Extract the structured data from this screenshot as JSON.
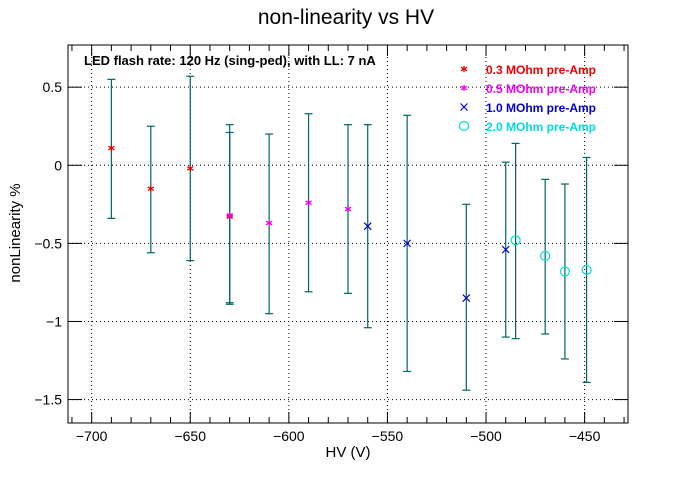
{
  "chart_data": {
    "type": "scatter",
    "title": "non-linearity vs HV",
    "xlabel": "HV (V)",
    "ylabel": "nonLinearity %",
    "annotation": "LED flash rate: 120 Hz  (sing-ped), with LL: 7 nA",
    "xlim": [
      -712,
      -428
    ],
    "ylim": [
      -1.65,
      0.77
    ],
    "x_ticks": [
      -700,
      -650,
      -600,
      -550,
      -500,
      -450
    ],
    "x_tick_labels": [
      "−700",
      "−650",
      "−600",
      "−550",
      "−500",
      "−450"
    ],
    "y_ticks": [
      0.5,
      0,
      -0.5,
      -1,
      -1.5
    ],
    "y_tick_labels": [
      "0.5",
      "0",
      "−0.5",
      "−1",
      "−1.5"
    ],
    "grid": true,
    "legend_position": "top-right",
    "error_bar_color": "#006666",
    "series": [
      {
        "name": "0.3 MOhm pre-Amp",
        "marker": "star",
        "marker_glyph": "*",
        "color": "#ee0000",
        "points": [
          {
            "x": -690,
            "y": 0.11,
            "ylow": -0.34,
            "yhigh": 0.55
          },
          {
            "x": -670,
            "y": -0.15,
            "ylow": -0.56,
            "yhigh": 0.25
          },
          {
            "x": -650,
            "y": -0.02,
            "ylow": -0.61,
            "yhigh": 0.57
          },
          {
            "x": -630,
            "y": -0.33,
            "ylow": -0.88,
            "yhigh": 0.21
          }
        ]
      },
      {
        "name": "0.5 MOhm pre-Amp",
        "marker": "star",
        "marker_glyph": "*",
        "color": "#ee00ee",
        "points": [
          {
            "x": -630,
            "y": -0.32,
            "ylow": -0.89,
            "yhigh": 0.26
          },
          {
            "x": -610,
            "y": -0.37,
            "ylow": -0.95,
            "yhigh": 0.2
          },
          {
            "x": -590,
            "y": -0.24,
            "ylow": -0.81,
            "yhigh": 0.33
          },
          {
            "x": -570,
            "y": -0.28,
            "ylow": -0.82,
            "yhigh": 0.26
          }
        ]
      },
      {
        "name": "1.0 MOhm pre-Amp",
        "marker": "x",
        "marker_glyph": "X",
        "color": "#0000cc",
        "points": [
          {
            "x": -560,
            "y": -0.39,
            "ylow": -1.04,
            "yhigh": 0.26
          },
          {
            "x": -540,
            "y": -0.5,
            "ylow": -1.32,
            "yhigh": 0.32
          },
          {
            "x": -510,
            "y": -0.85,
            "ylow": -1.44,
            "yhigh": -0.25
          },
          {
            "x": -490,
            "y": -0.54,
            "ylow": -1.1,
            "yhigh": 0.02
          }
        ]
      },
      {
        "name": "2.0 MOhm pre-Amp",
        "marker": "circle",
        "marker_glyph": "O",
        "color": "#00dddd",
        "points": [
          {
            "x": -485,
            "y": -0.48,
            "ylow": -1.11,
            "yhigh": 0.14
          },
          {
            "x": -470,
            "y": -0.58,
            "ylow": -1.08,
            "yhigh": -0.09
          },
          {
            "x": -460,
            "y": -0.68,
            "ylow": -1.24,
            "yhigh": -0.12
          },
          {
            "x": -449,
            "y": -0.67,
            "ylow": -1.39,
            "yhigh": 0.05
          }
        ]
      }
    ]
  }
}
